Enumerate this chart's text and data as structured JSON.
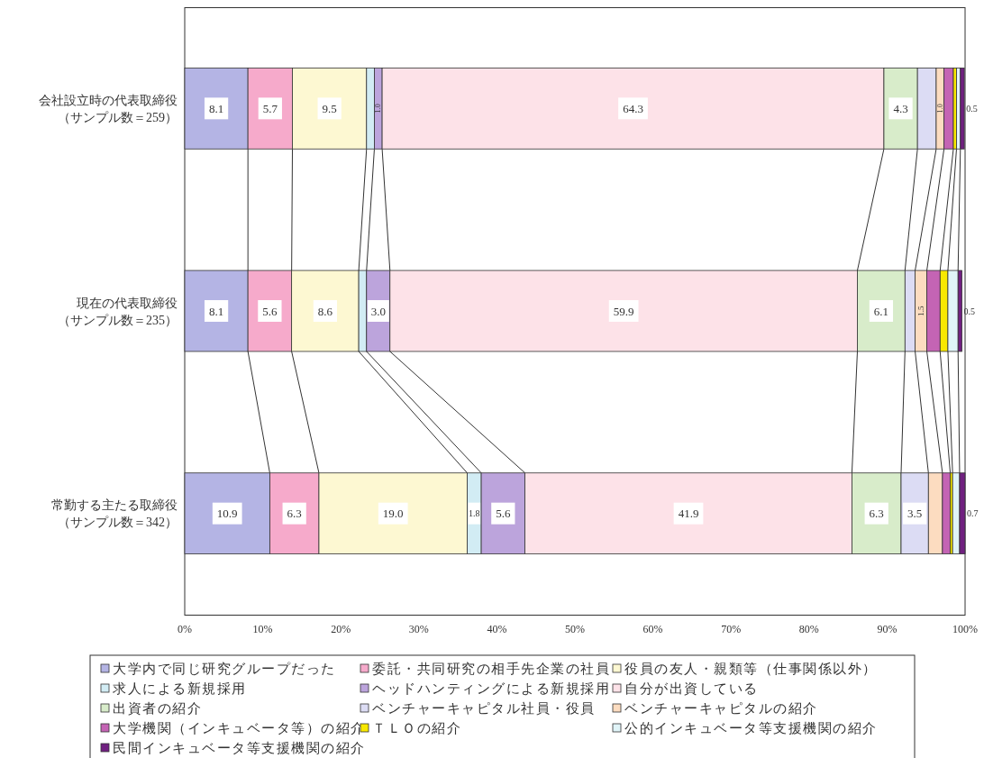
{
  "chart_data": {
    "type": "bar",
    "orientation": "horizontal",
    "stacked": true,
    "categories": [
      "会社設立時の代表取締役（サンプル数＝259）",
      "現在の代表取締役（サンプル数＝235）",
      "常勤する主たる取締役（サンプル数＝342）"
    ],
    "xlim": [
      0,
      100
    ],
    "xticks": [
      {
        "value": 0,
        "label": "0%"
      },
      {
        "value": 10,
        "label": "10%"
      },
      {
        "value": 20,
        "label": "20%"
      },
      {
        "value": 30,
        "label": "30%"
      },
      {
        "value": 40,
        "label": "40%"
      },
      {
        "value": 50,
        "label": "50%"
      },
      {
        "value": 60,
        "label": "60%"
      },
      {
        "value": 70,
        "label": "70%"
      },
      {
        "value": 80,
        "label": "80%"
      },
      {
        "value": 90,
        "label": "90%"
      },
      {
        "value": 100,
        "label": "100%"
      }
    ],
    "grid": false,
    "legend": "bottom",
    "series": [
      {
        "name": "大学内で同じ研究グループだった",
        "color": "#b4b4e4",
        "values": [
          8.1,
          8.1,
          10.9
        ],
        "value_labels": [
          "8.1",
          "8.1",
          "10.9"
        ]
      },
      {
        "name": "委託・共同研究の相手先企業の社員",
        "color": "#f6aacb",
        "values": [
          5.7,
          5.6,
          6.3
        ],
        "value_labels": [
          "5.7",
          "5.6",
          "6.3"
        ]
      },
      {
        "name": "役員の友人・親類等（仕事関係以外）",
        "color": "#fdf8d2",
        "values": [
          9.5,
          8.6,
          19.0
        ],
        "value_labels": [
          "9.5",
          "8.6",
          "19.0"
        ]
      },
      {
        "name": "求人による新規採用",
        "color": "#d2ecf4",
        "values": [
          1.0,
          1.0,
          1.8
        ],
        "value_labels": [
          null,
          null,
          "1.8"
        ]
      },
      {
        "name": "ヘッドハンティングによる新規採用",
        "color": "#bca4dc",
        "values": [
          1.0,
          3.0,
          5.6
        ],
        "value_labels": [
          "1.0",
          "3.0",
          "5.6"
        ]
      },
      {
        "name": "自分が出資している",
        "color": "#fde2e8",
        "values": [
          64.3,
          59.9,
          41.9
        ],
        "value_labels": [
          "64.3",
          "59.9",
          "41.9"
        ]
      },
      {
        "name": "出資者の紹介",
        "color": "#d8ecca",
        "values": [
          4.3,
          6.1,
          6.3
        ],
        "value_labels": [
          "4.3",
          "6.1",
          "6.3"
        ]
      },
      {
        "name": "ベンチャーキャピタル社員・役員",
        "color": "#dcdcf4",
        "values": [
          2.4,
          1.3,
          3.5
        ],
        "value_labels": [
          null,
          null,
          "3.5"
        ]
      },
      {
        "name": "ベンチャーキャピタルの紹介",
        "color": "#fcdcc0",
        "values": [
          1.0,
          1.5,
          1.8
        ],
        "value_labels": [
          "1.0",
          "1.5",
          null
        ]
      },
      {
        "name": "大学機関（インキュベータ等）の紹介",
        "color": "#c464b4",
        "values": [
          1.2,
          1.7,
          1.0
        ],
        "value_labels": [
          null,
          null,
          null
        ]
      },
      {
        "name": "ＴＬＯの紹介",
        "color": "#f8e800",
        "values": [
          0.4,
          1.0,
          0.3
        ],
        "value_labels": [
          null,
          null,
          null
        ]
      },
      {
        "name": "公的インキュベータ等支援機関の紹介",
        "color": "#e0f4f8",
        "values": [
          0.5,
          1.3,
          0.9
        ],
        "value_labels": [
          null,
          null,
          null
        ]
      },
      {
        "name": "民間インキュベータ等支援機関の紹介",
        "color": "#702080",
        "values": [
          0.5,
          0.5,
          0.7
        ],
        "value_labels": [
          "0.5",
          "0.5",
          "0.7"
        ]
      }
    ]
  }
}
